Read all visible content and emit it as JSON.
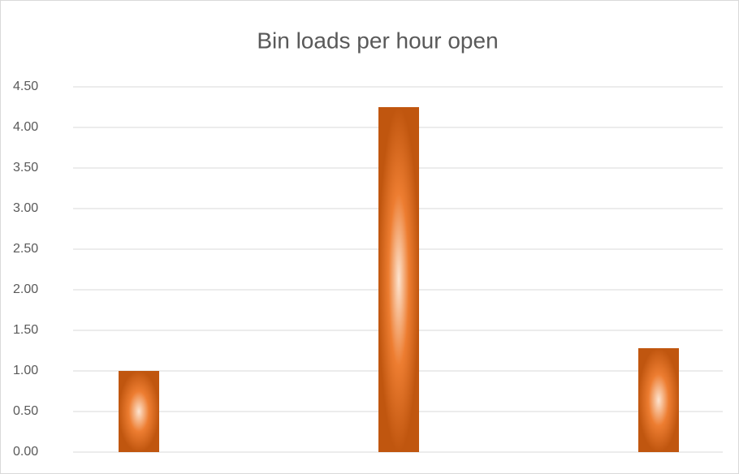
{
  "chart_data": {
    "type": "bar",
    "title": "Bin loads per hour open",
    "categories": [
      null,
      null,
      null
    ],
    "values": [
      1.0,
      4.25,
      1.28
    ],
    "color": "#ed7d31",
    "ylim": [
      0,
      4.5
    ],
    "yticks": [
      {
        "value": 0,
        "label": "0.00"
      },
      {
        "value": 0.5,
        "label": "0.50"
      },
      {
        "value": 1,
        "label": "1.00"
      },
      {
        "value": 1.5,
        "label": "1.50"
      },
      {
        "value": 2,
        "label": "2.00"
      },
      {
        "value": 2.5,
        "label": "2.50"
      },
      {
        "value": 3,
        "label": "3.00"
      },
      {
        "value": 3.5,
        "label": "3.50"
      },
      {
        "value": 4,
        "label": "4.00"
      },
      {
        "value": 4.5,
        "label": "4.50"
      }
    ],
    "grid": true
  }
}
